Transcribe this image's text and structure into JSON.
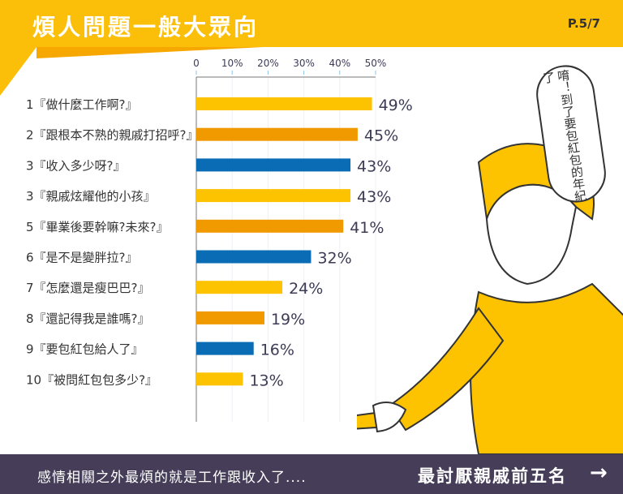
{
  "header": {
    "title": "煩人問題一般大眾向",
    "page": "P.5/7"
  },
  "bubble": {
    "text": "唷！到了要包紅包的年紀了"
  },
  "footer": {
    "left_text": "感情相關之外最煩的就是工作跟收入了....",
    "right_text": "最討厭親戚前五名",
    "arrow": "→"
  },
  "colors": {
    "yellow": "#fdc300",
    "orange": "#f09a00",
    "blue": "#0a6cb5",
    "header": "#fbbf0a",
    "footer": "#463d58"
  },
  "chart_data": {
    "type": "bar",
    "orientation": "horizontal",
    "xlim": [
      0,
      50
    ],
    "ticks": [
      "0",
      "10%",
      "20%",
      "30%",
      "40%",
      "50%"
    ],
    "tick_values": [
      0,
      10,
      20,
      30,
      40,
      50
    ],
    "categories": [
      "1『做什麼工作啊?』",
      "2『跟根本不熟的親戚打招呼?』",
      "3『收入多少呀?』",
      "3『親戚炫耀他的小孩』",
      "5『畢業後要幹嘛?未來?』",
      "6『是不是變胖拉?』",
      "7『怎麼還是瘦巴巴?』",
      "8『還記得我是誰嗎?』",
      "9『要包紅包給人了』",
      "10『被問紅包包多少?』"
    ],
    "values": [
      49,
      45,
      43,
      43,
      41,
      32,
      24,
      19,
      16,
      13
    ],
    "labels": [
      "49%",
      "45%",
      "43%",
      "43%",
      "41%",
      "32%",
      "24%",
      "19%",
      "16%",
      "13%"
    ],
    "bar_colors": [
      "yellow",
      "orange",
      "blue",
      "yellow",
      "orange",
      "blue",
      "yellow",
      "orange",
      "blue",
      "yellow"
    ]
  }
}
